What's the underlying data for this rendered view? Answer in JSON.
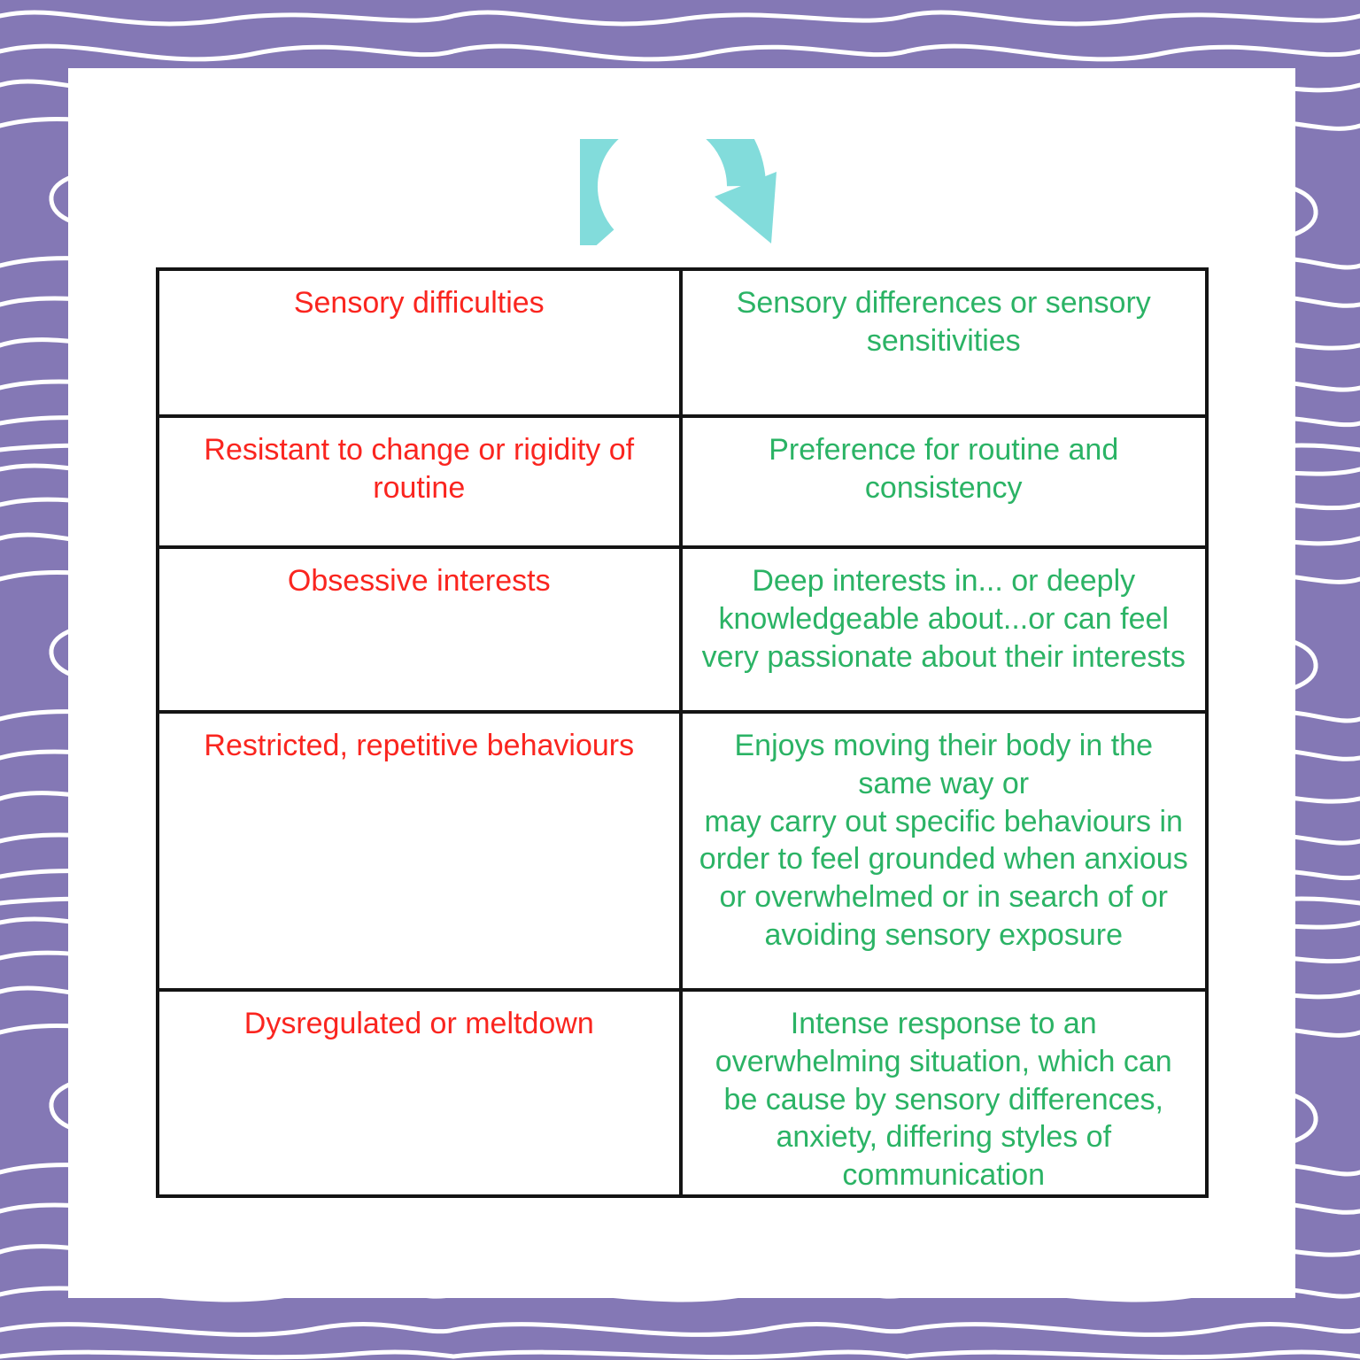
{
  "colors": {
    "border_purple": "#8478b5",
    "pattern_line": "#ffffff",
    "card_background": "#ffffff",
    "arrow_teal": "#82dcdb",
    "table_border": "#141414",
    "old_term_red": "#fa251f",
    "new_term_green": "#2bb365"
  },
  "arrow": {
    "icon": "curved-arrow-right"
  },
  "table": {
    "columns": [
      "old-terminology",
      "affirming-terminology"
    ],
    "rows": [
      {
        "left": "Sensory difficulties",
        "right": "Sensory differences or sensory sensitivities"
      },
      {
        "left": "Resistant to change or rigidity of routine",
        "right": "Preference for routine and consistency"
      },
      {
        "left": "Obsessive interests",
        "right": "Deep interests in... or deeply knowledgeable about...or can feel very passionate about their interests"
      },
      {
        "left": "Restricted, repetitive behaviours",
        "right": "Enjoys moving their body in the same way or\nmay carry out specific behaviours in order to feel grounded when anxious or overwhelmed or in search of or avoiding sensory exposure"
      },
      {
        "left": "Dysregulated or meltdown",
        "right": "Intense response to an overwhelming situation, which can be cause by sensory differences, anxiety, differing styles of communication"
      }
    ]
  }
}
